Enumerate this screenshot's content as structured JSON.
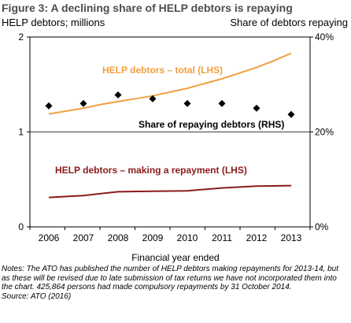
{
  "figure_title": "Figure 3: A declining share of HELP debtors is repaying",
  "left_axis_label": "HELP debtors; millions",
  "right_axis_label": "Share of debtors repaying",
  "notes": "Notes: The ATO has published the number of HELP debtors making repayments for 2013-14, but as these will be revised due to late submission of tax returns we have not incorporated them into the chart. 425,864 persons had made compulsory repayments by 31 October 2014.",
  "source": "Source: ATO (2016)",
  "chart_data": {
    "type": "line",
    "title": "Figure 3: A declining share of HELP debtors is repaying",
    "xlabel": "Financial year ended",
    "ylabel_left": "HELP debtors; millions",
    "ylabel_right": "Share of debtors repaying",
    "x": [
      "2006",
      "2007",
      "2008",
      "2009",
      "2010",
      "2011",
      "2012",
      "2013"
    ],
    "ylim_left": [
      0,
      2
    ],
    "yticks_left": [
      "0",
      "1",
      "2"
    ],
    "ylim_right": [
      0,
      40
    ],
    "yticks_right": [
      "0%",
      "20%",
      "40%"
    ],
    "grid": "horizontal at 1 (left axis)",
    "series": [
      {
        "name": "HELP debtors – total (LHS)",
        "axis": "left",
        "style": "line",
        "color": "#f0a040",
        "x": [
          2006,
          2006.5,
          2007,
          2007.5,
          2008,
          2008.5,
          2009,
          2009.5,
          2010,
          2010.5,
          2011,
          2011.5,
          2012,
          2012.5,
          2013
        ],
        "values": [
          1.19,
          1.22,
          1.25,
          1.29,
          1.32,
          1.35,
          1.38,
          1.42,
          1.46,
          1.51,
          1.56,
          1.62,
          1.68,
          1.75,
          1.83
        ]
      },
      {
        "name": "HELP debtors – making a repayment (LHS)",
        "axis": "left",
        "style": "line",
        "color": "#8b1a1a",
        "x": [
          2006,
          2007,
          2008,
          2009,
          2010,
          2011,
          2012,
          2013
        ],
        "values": [
          0.31,
          0.33,
          0.37,
          0.375,
          0.38,
          0.41,
          0.43,
          0.435
        ]
      },
      {
        "name": "Share of repaying debtors (RHS)",
        "axis": "right",
        "style": "scatter",
        "color": "#000000",
        "x": [
          2006,
          2007,
          2008,
          2009,
          2010,
          2011,
          2012,
          2013
        ],
        "values": [
          25.5,
          26,
          27.8,
          27,
          26,
          26,
          25,
          23.7
        ]
      }
    ],
    "annotations": [
      {
        "text": "HELP debtors – total (LHS)",
        "color": "#f0a040",
        "bold": true
      },
      {
        "text": "Share of repaying debtors (RHS)",
        "color": "#000000",
        "bold": true
      },
      {
        "text": "HELP debtors – making a repayment (LHS)",
        "color": "#8b1a1a",
        "bold": true
      }
    ]
  }
}
